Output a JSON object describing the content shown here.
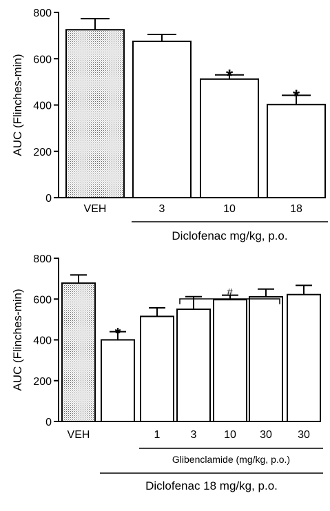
{
  "chart_data": [
    {
      "type": "bar",
      "ylabel": "AUC (Flinches-min)",
      "ylim": [
        0,
        800
      ],
      "yticks": [
        0,
        200,
        400,
        600,
        800
      ],
      "categories": [
        "VEH",
        "3",
        "10",
        "18"
      ],
      "values": [
        725,
        675,
        512,
        402
      ],
      "errors": [
        48,
        30,
        18,
        40
      ],
      "fills": [
        "dotted",
        "white",
        "white",
        "white"
      ],
      "significance": [
        "",
        "",
        "*",
        "*"
      ],
      "group_labels": [
        {
          "text": "Diclofenac mg/kg, p.o.",
          "from": 1,
          "to": 3
        }
      ]
    },
    {
      "type": "bar",
      "ylabel": "AUC (Flinches-min)",
      "ylim": [
        0,
        800
      ],
      "yticks": [
        0,
        200,
        400,
        600,
        800
      ],
      "categories": [
        "VEH",
        "",
        "1",
        "3",
        "10",
        "30",
        "30"
      ],
      "values": [
        678,
        400,
        515,
        550,
        597,
        611,
        622
      ],
      "errors": [
        40,
        40,
        42,
        62,
        22,
        38,
        45
      ],
      "fills": [
        "dotted",
        "white",
        "white",
        "white",
        "white",
        "white",
        "white"
      ],
      "significance": [
        "",
        "*",
        "",
        "",
        "",
        "",
        ""
      ],
      "bracket": {
        "text": "#",
        "from": 3,
        "to": 5
      },
      "group_labels": [
        {
          "text": "Glibenclamide  (mg/kg, p.o.)",
          "from": 2,
          "to": 6
        },
        {
          "text": "Diclofenac 18 mg/kg, p.o.",
          "from": 1,
          "to": 6
        }
      ]
    }
  ]
}
